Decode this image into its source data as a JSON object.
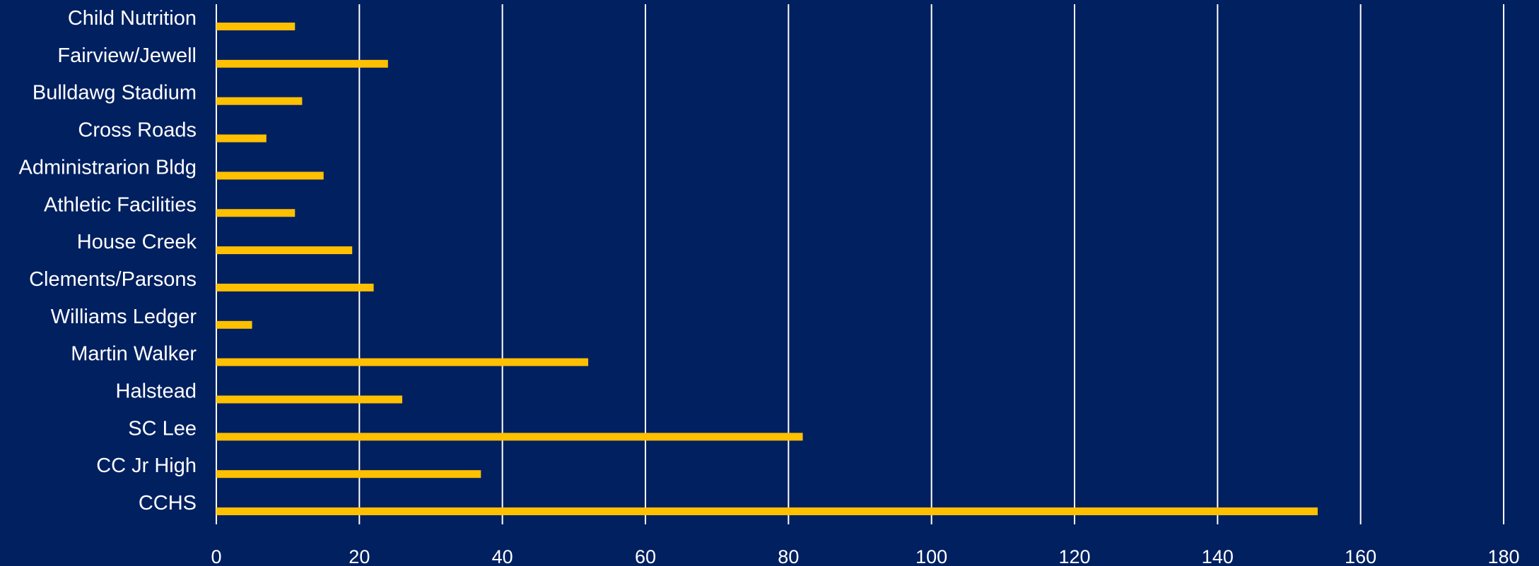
{
  "chart_data": {
    "type": "bar",
    "orientation": "horizontal",
    "categories": [
      "Child Nutrition",
      "Fairview/Jewell",
      "Bulldawg Stadium",
      "Cross Roads",
      "Administrarion Bldg",
      "Athletic Facilities",
      "House Creek",
      "Clements/Parsons",
      "Williams Ledger",
      "Martin Walker",
      "Halstead",
      "SC Lee",
      "CC Jr High",
      "CCHS"
    ],
    "values": [
      11,
      24,
      12,
      7,
      15,
      11,
      19,
      22,
      5,
      52,
      26,
      82,
      37,
      154
    ],
    "xlim": [
      0,
      180
    ],
    "xticks": [
      "0",
      "20",
      "40",
      "60",
      "80",
      "100",
      "120",
      "140",
      "160",
      "180"
    ],
    "grid": true,
    "legend": "none",
    "title": "",
    "xlabel": "",
    "ylabel": ""
  },
  "colors": {
    "background": "#002060",
    "bar": "#FFC000",
    "grid": "#FFFFFF",
    "text": "#FFFFFF"
  }
}
